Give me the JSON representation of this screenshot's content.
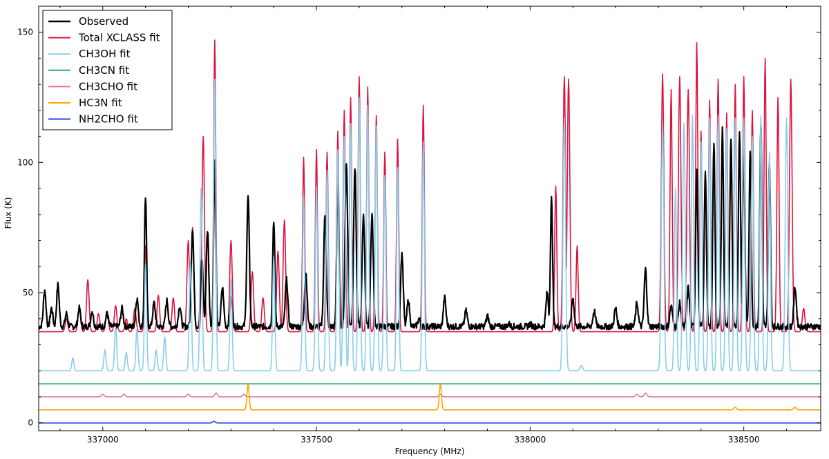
{
  "chart_data": {
    "type": "line",
    "title": "",
    "xlabel": "Frequency (MHz)",
    "ylabel": "Flux (K)",
    "xlim": [
      336850,
      338680
    ],
    "ylim": [
      -3,
      160
    ],
    "xticks": [
      337000,
      337500,
      338000,
      338500
    ],
    "xtick_labels": [
      "337000",
      "337500",
      "338000",
      "338500"
    ],
    "yticks": [
      0,
      50,
      100,
      150
    ],
    "ytick_labels": [
      "0",
      "50",
      "100",
      "150"
    ],
    "grid": false,
    "legend_position": "top-left",
    "series": [
      {
        "name": "Observed",
        "color": "#000000",
        "width": 2.2,
        "baseline": 37,
        "noise": 1.2,
        "peaks": [
          [
            336864,
            51,
            3
          ],
          [
            336880,
            44,
            3
          ],
          [
            336895,
            53,
            3
          ],
          [
            336915,
            42,
            3
          ],
          [
            336945,
            44,
            3
          ],
          [
            336975,
            43,
            3
          ],
          [
            337010,
            42,
            3
          ],
          [
            337045,
            44,
            3
          ],
          [
            337080,
            48,
            3
          ],
          [
            337100,
            87,
            2.5
          ],
          [
            337120,
            46,
            3
          ],
          [
            337150,
            47,
            3
          ],
          [
            337180,
            45,
            3
          ],
          [
            337210,
            75,
            3
          ],
          [
            337232,
            63,
            3
          ],
          [
            337245,
            74,
            3
          ],
          [
            337262,
            101,
            2.5
          ],
          [
            337280,
            52,
            3
          ],
          [
            337300,
            48,
            3
          ],
          [
            337340,
            87,
            3
          ],
          [
            337400,
            78,
            2.5
          ],
          [
            337430,
            55,
            3
          ],
          [
            337475,
            58,
            3
          ],
          [
            337520,
            80,
            3
          ],
          [
            337550,
            95,
            2.5
          ],
          [
            337570,
            100,
            3
          ],
          [
            337590,
            98,
            3
          ],
          [
            337610,
            80,
            3
          ],
          [
            337630,
            80,
            3
          ],
          [
            337700,
            65,
            3
          ],
          [
            337715,
            47,
            3
          ],
          [
            337740,
            40,
            3
          ],
          [
            337800,
            48,
            3
          ],
          [
            337850,
            43,
            3
          ],
          [
            337900,
            41,
            3
          ],
          [
            337950,
            38,
            3
          ],
          [
            338000,
            38,
            3
          ],
          [
            338040,
            50,
            3
          ],
          [
            338050,
            86,
            2.5
          ],
          [
            338100,
            48,
            3
          ],
          [
            338150,
            43,
            3
          ],
          [
            338200,
            44,
            3
          ],
          [
            338250,
            46,
            3
          ],
          [
            338270,
            59,
            3
          ],
          [
            338330,
            45,
            3
          ],
          [
            338350,
            46,
            3
          ],
          [
            338370,
            52,
            3
          ],
          [
            338390,
            98,
            2.5
          ],
          [
            338410,
            97,
            2.5
          ],
          [
            338430,
            108,
            2.5
          ],
          [
            338450,
            113,
            2.5
          ],
          [
            338470,
            110,
            2.5
          ],
          [
            338490,
            112,
            2.5
          ],
          [
            338500,
            107,
            2.5
          ],
          [
            338515,
            105,
            2.5
          ],
          [
            338540,
            115,
            2.5
          ],
          [
            338560,
            101,
            2.5
          ],
          [
            338620,
            52,
            3
          ]
        ]
      },
      {
        "name": "Total XCLASS fit",
        "color": "#dc143c",
        "width": 1.6,
        "baseline": 35,
        "noise": 0,
        "peaks": [
          [
            336915,
            40,
            3
          ],
          [
            336945,
            45,
            3
          ],
          [
            336965,
            55,
            3
          ],
          [
            336990,
            42,
            3
          ],
          [
            337010,
            43,
            3
          ],
          [
            337030,
            45,
            3
          ],
          [
            337055,
            40,
            3
          ],
          [
            337075,
            44,
            3
          ],
          [
            337100,
            68,
            2.5
          ],
          [
            337130,
            49,
            3
          ],
          [
            337165,
            48,
            3
          ],
          [
            337200,
            70,
            3
          ],
          [
            337210,
            75,
            3
          ],
          [
            337235,
            110,
            3
          ],
          [
            337262,
            147,
            2.5
          ],
          [
            337300,
            70,
            3
          ],
          [
            337350,
            58,
            3
          ],
          [
            337375,
            48,
            3
          ],
          [
            337410,
            66,
            3
          ],
          [
            337425,
            78,
            3
          ],
          [
            337470,
            102,
            2.5
          ],
          [
            337500,
            105,
            2.5
          ],
          [
            337525,
            104,
            2.5
          ],
          [
            337550,
            112,
            2.5
          ],
          [
            337565,
            120,
            2.5
          ],
          [
            337580,
            125,
            2.5
          ],
          [
            337600,
            133,
            2.5
          ],
          [
            337620,
            129,
            2.5
          ],
          [
            337640,
            118,
            2.5
          ],
          [
            337660,
            104,
            2.5
          ],
          [
            337690,
            109,
            2.5
          ],
          [
            337750,
            122,
            2.5
          ],
          [
            338060,
            91,
            2.5
          ],
          [
            338080,
            133,
            3
          ],
          [
            338090,
            132,
            3
          ],
          [
            338110,
            68,
            2.5
          ],
          [
            338310,
            134,
            3
          ],
          [
            338330,
            128,
            2.5
          ],
          [
            338350,
            133,
            3
          ],
          [
            338370,
            128,
            3
          ],
          [
            338390,
            146,
            2.5
          ],
          [
            338400,
            112,
            2.5
          ],
          [
            338420,
            124,
            2.5
          ],
          [
            338440,
            132,
            2.5
          ],
          [
            338460,
            119,
            2.5
          ],
          [
            338480,
            130,
            2.5
          ],
          [
            338500,
            133,
            2.5
          ],
          [
            338520,
            120,
            2.5
          ],
          [
            338550,
            140,
            2.5
          ],
          [
            338580,
            125,
            2.5
          ],
          [
            338610,
            132,
            3
          ],
          [
            338640,
            44,
            3
          ]
        ]
      },
      {
        "name": "CH3OH fit",
        "color": "#87ceeb",
        "width": 1.6,
        "baseline": 20,
        "noise": 0,
        "peaks": [
          [
            336930,
            25,
            2.5
          ],
          [
            337005,
            28,
            2.5
          ],
          [
            337030,
            37,
            2.5
          ],
          [
            337055,
            27,
            2.5
          ],
          [
            337080,
            36,
            2.5
          ],
          [
            337100,
            61,
            2.5
          ],
          [
            337125,
            28,
            2.5
          ],
          [
            337145,
            33,
            2.5
          ],
          [
            337205,
            62,
            2.5
          ],
          [
            337230,
            90,
            2.5
          ],
          [
            337262,
            132,
            2.5
          ],
          [
            337300,
            55,
            2.5
          ],
          [
            337400,
            64,
            2.5
          ],
          [
            337470,
            87,
            2.5
          ],
          [
            337500,
            91,
            2.5
          ],
          [
            337525,
            97,
            2.5
          ],
          [
            337550,
            105,
            2.5
          ],
          [
            337565,
            110,
            2.5
          ],
          [
            337580,
            115,
            2.5
          ],
          [
            337600,
            125,
            2.5
          ],
          [
            337620,
            122,
            2.5
          ],
          [
            337640,
            114,
            2.5
          ],
          [
            337660,
            95,
            2.5
          ],
          [
            337690,
            98,
            2.5
          ],
          [
            337750,
            108,
            2.5
          ],
          [
            338080,
            117,
            3
          ],
          [
            338120,
            22,
            3
          ],
          [
            338310,
            115,
            3
          ],
          [
            338340,
            90,
            2.5
          ],
          [
            338360,
            115,
            3
          ],
          [
            338380,
            118,
            2.5
          ],
          [
            338400,
            108,
            2.5
          ],
          [
            338420,
            117,
            2.5
          ],
          [
            338440,
            118,
            2.5
          ],
          [
            338460,
            113,
            2.5
          ],
          [
            338480,
            117,
            2.5
          ],
          [
            338500,
            117,
            2.5
          ],
          [
            338520,
            110,
            2.5
          ],
          [
            338540,
            118,
            2.5
          ],
          [
            338560,
            104,
            2.5
          ],
          [
            338600,
            117,
            3
          ]
        ]
      },
      {
        "name": "CH3CN fit",
        "color": "#3cb371",
        "width": 1.8,
        "baseline": 15,
        "noise": 0,
        "peaks": []
      },
      {
        "name": "CH3CHO fit",
        "color": "#db7093",
        "width": 1.5,
        "baseline": 10,
        "noise": 0,
        "peaks": [
          [
            337000,
            11,
            3
          ],
          [
            337050,
            11,
            3
          ],
          [
            337200,
            11,
            3
          ],
          [
            337265,
            11.5,
            3
          ],
          [
            337330,
            11,
            3
          ],
          [
            337790,
            11,
            3
          ],
          [
            338250,
            11,
            3
          ],
          [
            338270,
            11.5,
            3
          ]
        ]
      },
      {
        "name": "HC3N fit",
        "color": "#ffa500",
        "width": 1.6,
        "baseline": 5,
        "noise": 0,
        "peaks": [
          [
            337340,
            15,
            2.5
          ],
          [
            337790,
            15,
            2.5
          ],
          [
            338480,
            6,
            3
          ],
          [
            338620,
            6,
            3
          ]
        ]
      },
      {
        "name": "NH2CHO fit",
        "color": "#4169e1",
        "width": 2.0,
        "baseline": 0,
        "noise": 0,
        "peaks": [
          [
            337260,
            0.6,
            3
          ]
        ]
      }
    ]
  }
}
